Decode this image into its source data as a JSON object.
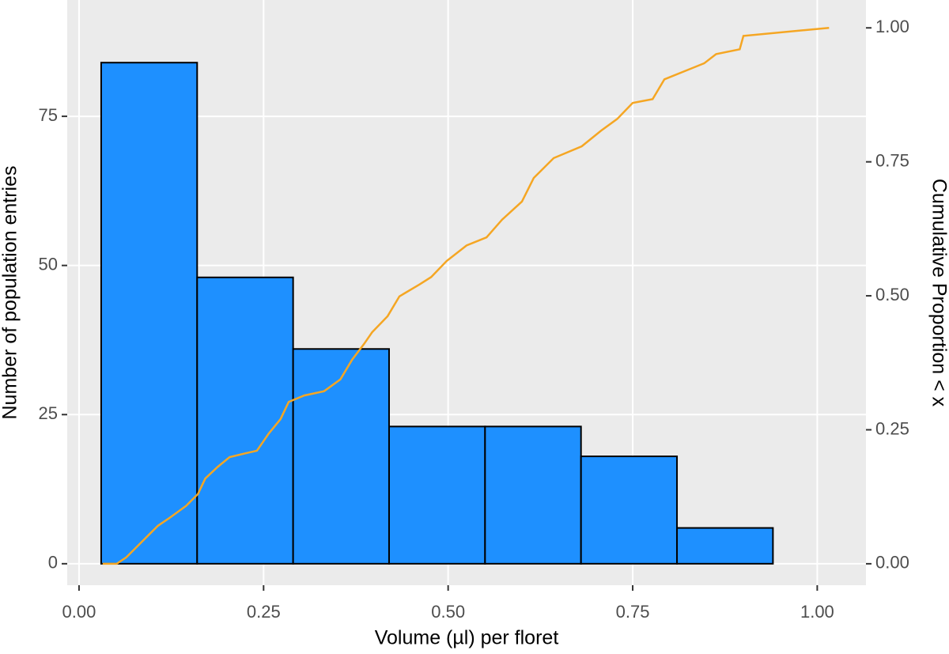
{
  "chart_data": {
    "type": "histogram",
    "x_label": "Volume (µl) per floret",
    "y_label": "Number of population entries",
    "y2_label": "Cumulative Proportion < x",
    "bins": [
      0.03,
      0.16,
      0.29,
      0.42,
      0.55,
      0.68,
      0.81,
      0.94
    ],
    "counts": [
      84,
      48,
      36,
      23,
      23,
      18,
      6
    ],
    "color": "#1e90ff",
    "cumulative": {
      "color": "#f5a623",
      "axis": "y2",
      "x": [
        0.032,
        0.051,
        0.064,
        0.08,
        0.096,
        0.107,
        0.123,
        0.145,
        0.161,
        0.171,
        0.188,
        0.204,
        0.225,
        0.241,
        0.257,
        0.273,
        0.284,
        0.305,
        0.332,
        0.354,
        0.37,
        0.386,
        0.397,
        0.418,
        0.434,
        0.461,
        0.477,
        0.498,
        0.525,
        0.552,
        0.573,
        0.6,
        0.616,
        0.643,
        0.681,
        0.707,
        0.729,
        0.75,
        0.777,
        0.793,
        0.82,
        0.847,
        0.863,
        0.895,
        0.9,
        1.016
      ],
      "values": [
        0,
        0,
        0.012,
        0.034,
        0.056,
        0.071,
        0.086,
        0.108,
        0.13,
        0.159,
        0.181,
        0.199,
        0.206,
        0.211,
        0.243,
        0.27,
        0.302,
        0.314,
        0.322,
        0.344,
        0.381,
        0.41,
        0.432,
        0.462,
        0.499,
        0.521,
        0.535,
        0.565,
        0.594,
        0.609,
        0.642,
        0.676,
        0.72,
        0.757,
        0.779,
        0.808,
        0.83,
        0.86,
        0.867,
        0.904,
        0.919,
        0.934,
        0.951,
        0.96,
        0.985,
        1.0
      ]
    },
    "xlim": [
      -0.016,
      1.066
    ],
    "xticks": [
      {
        "value": 0,
        "label": "0.00"
      },
      {
        "value": 0.25,
        "label": "0.25"
      },
      {
        "value": 0.5,
        "label": "0.50"
      },
      {
        "value": 0.75,
        "label": "0.75"
      },
      {
        "value": 1,
        "label": "1.00"
      }
    ],
    "ylim": [
      -3.6,
      94.5
    ],
    "yticks": [
      0,
      25,
      50,
      75
    ],
    "y2lim": [
      -0.04,
      1.052
    ],
    "y2ticks": [
      {
        "value": 0,
        "label": "0.00"
      },
      {
        "value": 0.25,
        "label": "0.25"
      },
      {
        "value": 0.5,
        "label": "0.50"
      },
      {
        "value": 0.75,
        "label": "0.75"
      },
      {
        "value": 1,
        "label": "1.00"
      }
    ],
    "grid": true
  }
}
